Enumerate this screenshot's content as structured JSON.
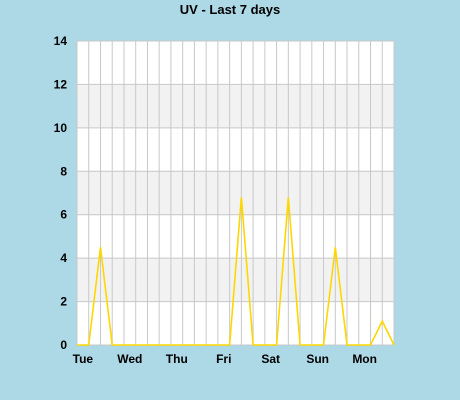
{
  "chart_data": {
    "type": "line",
    "title": "UV - Last 7 days",
    "xlabel": "",
    "ylabel": "",
    "x": [
      0,
      1,
      2,
      3,
      4,
      5,
      6,
      7,
      8,
      9,
      10,
      11,
      12,
      13,
      14,
      15,
      16,
      17,
      18,
      19,
      20,
      21,
      22,
      23,
      24,
      25,
      26,
      27
    ],
    "series": [
      {
        "values": [
          0,
          0,
          4.5,
          0,
          0,
          0,
          0,
          0,
          0,
          0,
          0,
          0,
          0,
          0,
          6.8,
          0,
          0,
          0,
          6.8,
          0,
          0,
          0,
          4.5,
          0,
          0,
          0,
          1.1,
          0
        ]
      }
    ],
    "day_labels": [
      {
        "index": 0.5,
        "label": "Tue"
      },
      {
        "index": 4.5,
        "label": "Wed"
      },
      {
        "index": 8.5,
        "label": "Thu"
      },
      {
        "index": 12.5,
        "label": "Fri"
      },
      {
        "index": 16.5,
        "label": "Sat"
      },
      {
        "index": 20.5,
        "label": "Sun"
      },
      {
        "index": 24.5,
        "label": "Mon"
      }
    ],
    "yticks": [
      0,
      2,
      4,
      6,
      8,
      10,
      12,
      14
    ],
    "ylim": [
      0,
      14
    ],
    "grid": true,
    "band_color": "#f2f2f2",
    "grid_color": "#c8c8c8",
    "line_color": "#ffd700",
    "background": "#add8e6"
  }
}
